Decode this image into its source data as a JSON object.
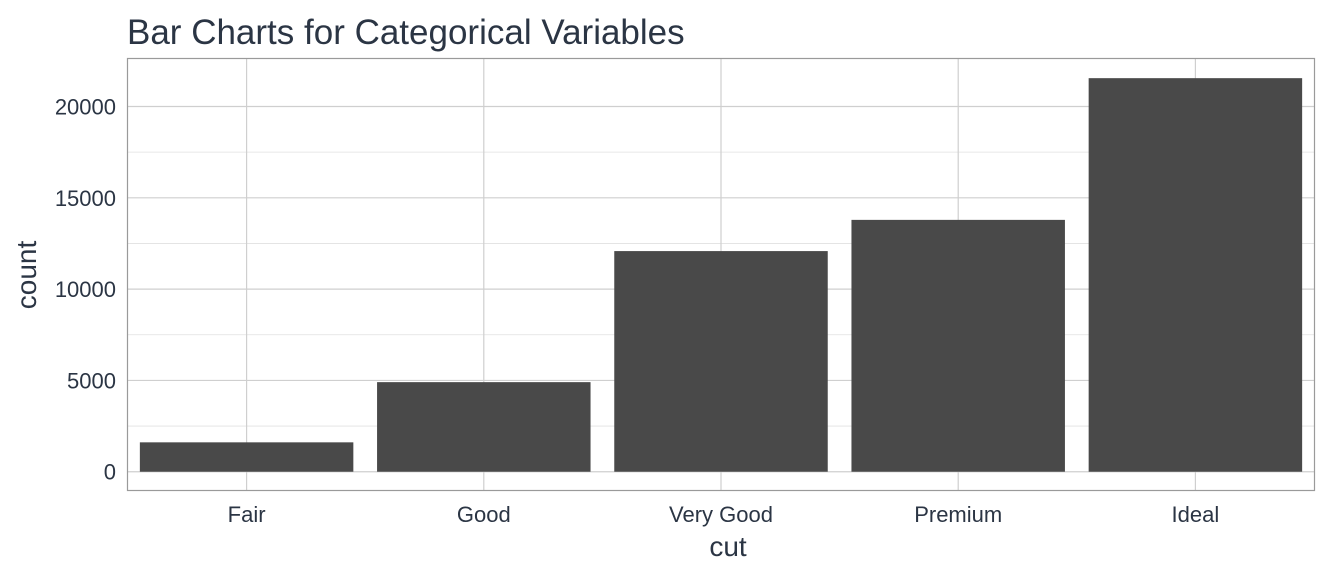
{
  "chart_data": {
    "type": "bar",
    "title": "Bar Charts for Categorical Variables",
    "xlabel": "cut",
    "ylabel": "count",
    "categories": [
      "Fair",
      "Good",
      "Very Good",
      "Premium",
      "Ideal"
    ],
    "values": [
      1610,
      4906,
      12082,
      13791,
      21551
    ],
    "ylim": [
      -1000,
      22600
    ],
    "yticks": [
      0,
      5000,
      10000,
      15000,
      20000
    ],
    "ytick_labels": [
      "0",
      "5000",
      "10000",
      "15000",
      "20000"
    ],
    "grid": true,
    "legend": "none",
    "colors": {
      "bar": "#494949",
      "text": "#2b3544"
    }
  }
}
